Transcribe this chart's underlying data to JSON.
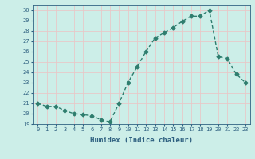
{
  "x": [
    0,
    1,
    2,
    3,
    4,
    5,
    6,
    7,
    8,
    9,
    10,
    11,
    12,
    13,
    14,
    15,
    16,
    17,
    18,
    19,
    20,
    21,
    22,
    23
  ],
  "y": [
    21.0,
    20.7,
    20.7,
    20.3,
    20.0,
    19.9,
    19.8,
    19.4,
    19.2,
    21.0,
    23.0,
    24.5,
    26.0,
    27.3,
    27.8,
    28.3,
    28.9,
    29.4,
    29.4,
    30.0,
    25.5,
    25.3,
    23.8,
    23.0
  ],
  "line_color": "#2e7d6e",
  "marker": "D",
  "markersize": 2.5,
  "linewidth": 1.0,
  "xlabel": "Humidex (Indice chaleur)",
  "xlim": [
    -0.5,
    23.5
  ],
  "ylim": [
    19,
    30.5
  ],
  "yticks": [
    19,
    20,
    21,
    22,
    23,
    24,
    25,
    26,
    27,
    28,
    29,
    30
  ],
  "xticks": [
    0,
    1,
    2,
    3,
    4,
    5,
    6,
    7,
    8,
    9,
    10,
    11,
    12,
    13,
    14,
    15,
    16,
    17,
    18,
    19,
    20,
    21,
    22,
    23
  ],
  "bg_color": "#cceee8",
  "grid_color": "#e8c8c8",
  "tick_color": "#2e6080",
  "label_color": "#2e6080",
  "font_family": "monospace",
  "tick_fontsize": 5.0,
  "xlabel_fontsize": 6.5
}
